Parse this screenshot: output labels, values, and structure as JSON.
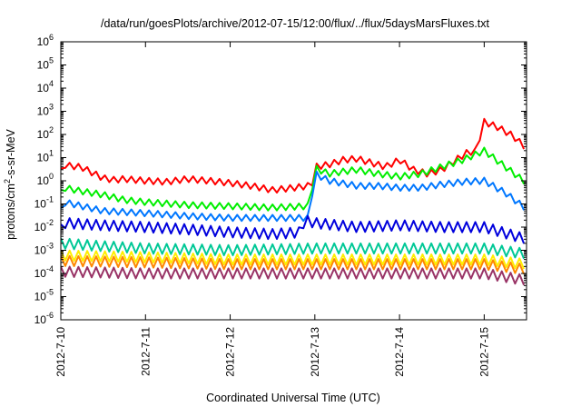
{
  "chart_data": {
    "type": "line",
    "title": "/data/run/goesPlots/archive/2012-07-15/12:00/flux/../flux/5daysMarsFluxes.txt",
    "xlabel": "Coordinated Universal Time (UTC)",
    "ylabel": "protons/cm2-s-sr-MeV",
    "ylabel_parts": {
      "base": "protons/cm",
      "sup": "2",
      "rest": "-s-sr-MeV"
    },
    "yscale": "log",
    "ylim_exponent": [
      -6,
      6
    ],
    "y_ticks": [
      {
        "base": "10",
        "exp": "6"
      },
      {
        "base": "10",
        "exp": "5"
      },
      {
        "base": "10",
        "exp": "4"
      },
      {
        "base": "10",
        "exp": "3"
      },
      {
        "base": "10",
        "exp": "2"
      },
      {
        "base": "10",
        "exp": "1"
      },
      {
        "base": "10",
        "exp": "0"
      },
      {
        "base": "10",
        "exp": "-1"
      },
      {
        "base": "10",
        "exp": "-2"
      },
      {
        "base": "10",
        "exp": "-3"
      },
      {
        "base": "10",
        "exp": "-4"
      },
      {
        "base": "10",
        "exp": "-5"
      },
      {
        "base": "10",
        "exp": "-6"
      }
    ],
    "xlim": [
      "2012-07-10",
      "2012-07-15 12:00"
    ],
    "x_ticks": [
      "2012-7-10",
      "2012-7-11",
      "2012-7-12",
      "2012-7-13",
      "2012-7-14",
      "2012-7-15"
    ],
    "grid": false,
    "series": [
      {
        "color": "#ff0000",
        "x": [
          "2012-07-10 00:00",
          "2012-07-10 01:00",
          "2012-07-10 02:00",
          "2012-07-10 04:00",
          "2012-07-10 06:00",
          "2012-07-10 09:00",
          "2012-07-10 12:00",
          "2012-07-10 15:00",
          "2012-07-10 18:00",
          "2012-07-11 00:00",
          "2012-07-11 06:00",
          "2012-07-11 12:00",
          "2012-07-11 18:00",
          "2012-07-12 00:00",
          "2012-07-12 06:00",
          "2012-07-12 12:00",
          "2012-07-12 18:00",
          "2012-07-12 22:00",
          "2012-07-12 23:00",
          "2012-07-13 00:00",
          "2012-07-13 04:00",
          "2012-07-13 08:00",
          "2012-07-13 12:00",
          "2012-07-13 16:00",
          "2012-07-13 20:00",
          "2012-07-14 00:00",
          "2012-07-14 04:00",
          "2012-07-14 08:00",
          "2012-07-14 12:00",
          "2012-07-14 16:00",
          "2012-07-14 20:00",
          "2012-07-14 21:00",
          "2012-07-14 22:00",
          "2012-07-15 00:00",
          "2012-07-15 04:00",
          "2012-07-15 08:00",
          "2012-07-15 12:00"
        ],
        "values": [
          2.5,
          5,
          4.5,
          4.2,
          3.8,
          2.2,
          1.3,
          1.1,
          1.2,
          1.0,
          0.9,
          1.2,
          1.0,
          0.8,
          0.6,
          0.4,
          0.5,
          0.6,
          0.5,
          4,
          5,
          8,
          9,
          6,
          4,
          8,
          3,
          2,
          3,
          8,
          20,
          12,
          30,
          350,
          200,
          90,
          25
        ]
      },
      {
        "color": "#00ee00",
        "x": [
          "2012-07-10 00:00",
          "2012-07-10 01:00",
          "2012-07-10 06:00",
          "2012-07-10 12:00",
          "2012-07-10 18:00",
          "2012-07-11 00:00",
          "2012-07-11 12:00",
          "2012-07-12 00:00",
          "2012-07-12 12:00",
          "2012-07-12 22:00",
          "2012-07-12 23:00",
          "2012-07-13 00:00",
          "2012-07-13 04:00",
          "2012-07-13 08:00",
          "2012-07-13 12:00",
          "2012-07-13 18:00",
          "2012-07-14 00:00",
          "2012-07-14 06:00",
          "2012-07-14 12:00",
          "2012-07-14 18:00",
          "2012-07-15 00:00",
          "2012-07-15 06:00",
          "2012-07-15 12:00"
        ],
        "values": [
          0.3,
          0.5,
          0.35,
          0.25,
          0.15,
          0.12,
          0.09,
          0.08,
          0.07,
          0.08,
          0.3,
          3.5,
          2,
          2.5,
          3,
          2,
          1.5,
          2,
          4,
          8,
          20,
          4,
          0.8
        ]
      },
      {
        "color": "#0077ff",
        "x": [
          "2012-07-10 00:00",
          "2012-07-10 01:00",
          "2012-07-10 06:00",
          "2012-07-10 12:00",
          "2012-07-11 00:00",
          "2012-07-11 12:00",
          "2012-07-12 00:00",
          "2012-07-12 12:00",
          "2012-07-12 22:00",
          "2012-07-12 23:00",
          "2012-07-13 00:00",
          "2012-07-13 04:00",
          "2012-07-13 12:00",
          "2012-07-13 18:00",
          "2012-07-14 00:00",
          "2012-07-14 06:00",
          "2012-07-14 12:00",
          "2012-07-14 18:00",
          "2012-07-15 00:00",
          "2012-07-15 06:00",
          "2012-07-15 12:00"
        ],
        "values": [
          0.05,
          0.12,
          0.08,
          0.05,
          0.04,
          0.03,
          0.025,
          0.025,
          0.025,
          0.15,
          2,
          1,
          0.6,
          0.6,
          0.5,
          0.5,
          0.7,
          0.9,
          1.0,
          0.3,
          0.06
        ]
      },
      {
        "color": "#0000dd",
        "x": [
          "2012-07-10 00:00",
          "2012-07-10 01:00",
          "2012-07-10 12:00",
          "2012-07-11 00:00",
          "2012-07-11 12:00",
          "2012-07-12 00:00",
          "2012-07-12 12:00",
          "2012-07-12 20:00",
          "2012-07-12 21:00",
          "2012-07-13 00:00",
          "2012-07-13 12:00",
          "2012-07-14 00:00",
          "2012-07-14 12:00",
          "2012-07-15 00:00",
          "2012-07-15 12:00"
        ],
        "values": [
          0.008,
          0.015,
          0.012,
          0.01,
          0.008,
          0.006,
          0.005,
          0.006,
          0.02,
          0.015,
          0.01,
          0.012,
          0.01,
          0.01,
          0.003
        ]
      },
      {
        "color": "#00c896",
        "x": [
          "2012-07-10 00:00",
          "2012-07-10 12:00",
          "2012-07-11 00:00",
          "2012-07-12 00:00",
          "2012-07-13 00:00",
          "2012-07-14 00:00",
          "2012-07-15 00:00",
          "2012-07-15 12:00"
        ],
        "values": [
          0.002,
          0.0015,
          0.0012,
          0.001,
          0.0012,
          0.0012,
          0.0012,
          0.0007
        ]
      },
      {
        "color": "#ffee00",
        "x": [
          "2012-07-10 00:00",
          "2012-07-11 00:00",
          "2012-07-12 00:00",
          "2012-07-13 00:00",
          "2012-07-14 00:00",
          "2012-07-15 00:00",
          "2012-07-15 12:00"
        ],
        "values": [
          0.0006,
          0.0005,
          0.0004,
          0.0004,
          0.0004,
          0.0004,
          0.00025
        ]
      },
      {
        "color": "#ff8800",
        "x": [
          "2012-07-10 00:00",
          "2012-07-11 00:00",
          "2012-07-12 00:00",
          "2012-07-13 00:00",
          "2012-07-14 00:00",
          "2012-07-15 00:00",
          "2012-07-15 12:00"
        ],
        "values": [
          0.00035,
          0.0003,
          0.00025,
          0.00025,
          0.00025,
          0.00025,
          0.00015
        ]
      },
      {
        "color": "#993366",
        "x": [
          "2012-07-10 00:00",
          "2012-07-11 00:00",
          "2012-07-12 00:00",
          "2012-07-13 00:00",
          "2012-07-14 00:00",
          "2012-07-15 00:00",
          "2012-07-15 12:00"
        ],
        "values": [
          0.00012,
          0.0001,
          0.0001,
          0.0001,
          0.0001,
          0.0001,
          5e-05
        ]
      }
    ]
  }
}
